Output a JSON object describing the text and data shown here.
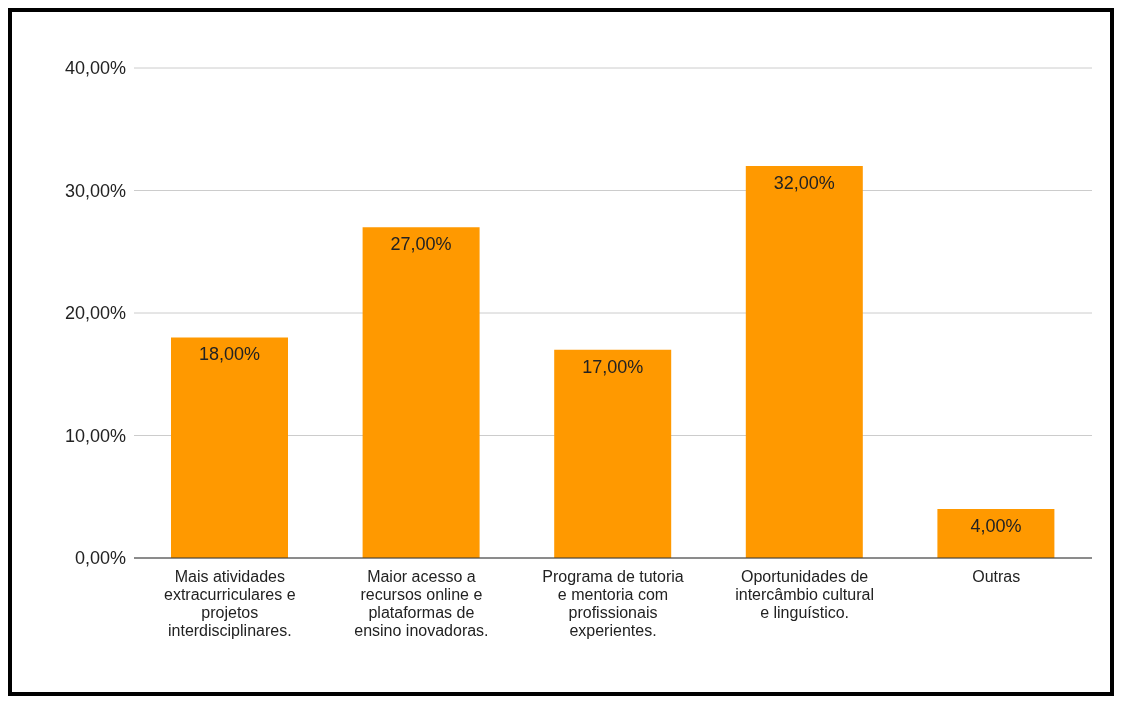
{
  "chart_data": {
    "type": "bar",
    "categories": [
      "Mais atividades extracurriculares e projetos interdisciplinares.",
      "Maior acesso a recursos online e plataformas de ensino inovadoras.",
      "Programa de tutoria e mentoria com profissionais experientes.",
      "Oportunidades de intercâmbio cultural e linguístico.",
      "Outras"
    ],
    "values": [
      18,
      27,
      17,
      32,
      4
    ],
    "value_labels": [
      "18,00%",
      "27,00%",
      "17,00%",
      "32,00%",
      "4,00%"
    ],
    "color": "#ff9900",
    "ylim": [
      0,
      40
    ],
    "yticks": [
      {
        "value": 0,
        "label": "0,00%"
      },
      {
        "value": 10,
        "label": "10,00%"
      },
      {
        "value": 20,
        "label": "20,00%"
      },
      {
        "value": 30,
        "label": "30,00%"
      },
      {
        "value": 40,
        "label": "40,00%"
      }
    ],
    "grid": "y"
  }
}
